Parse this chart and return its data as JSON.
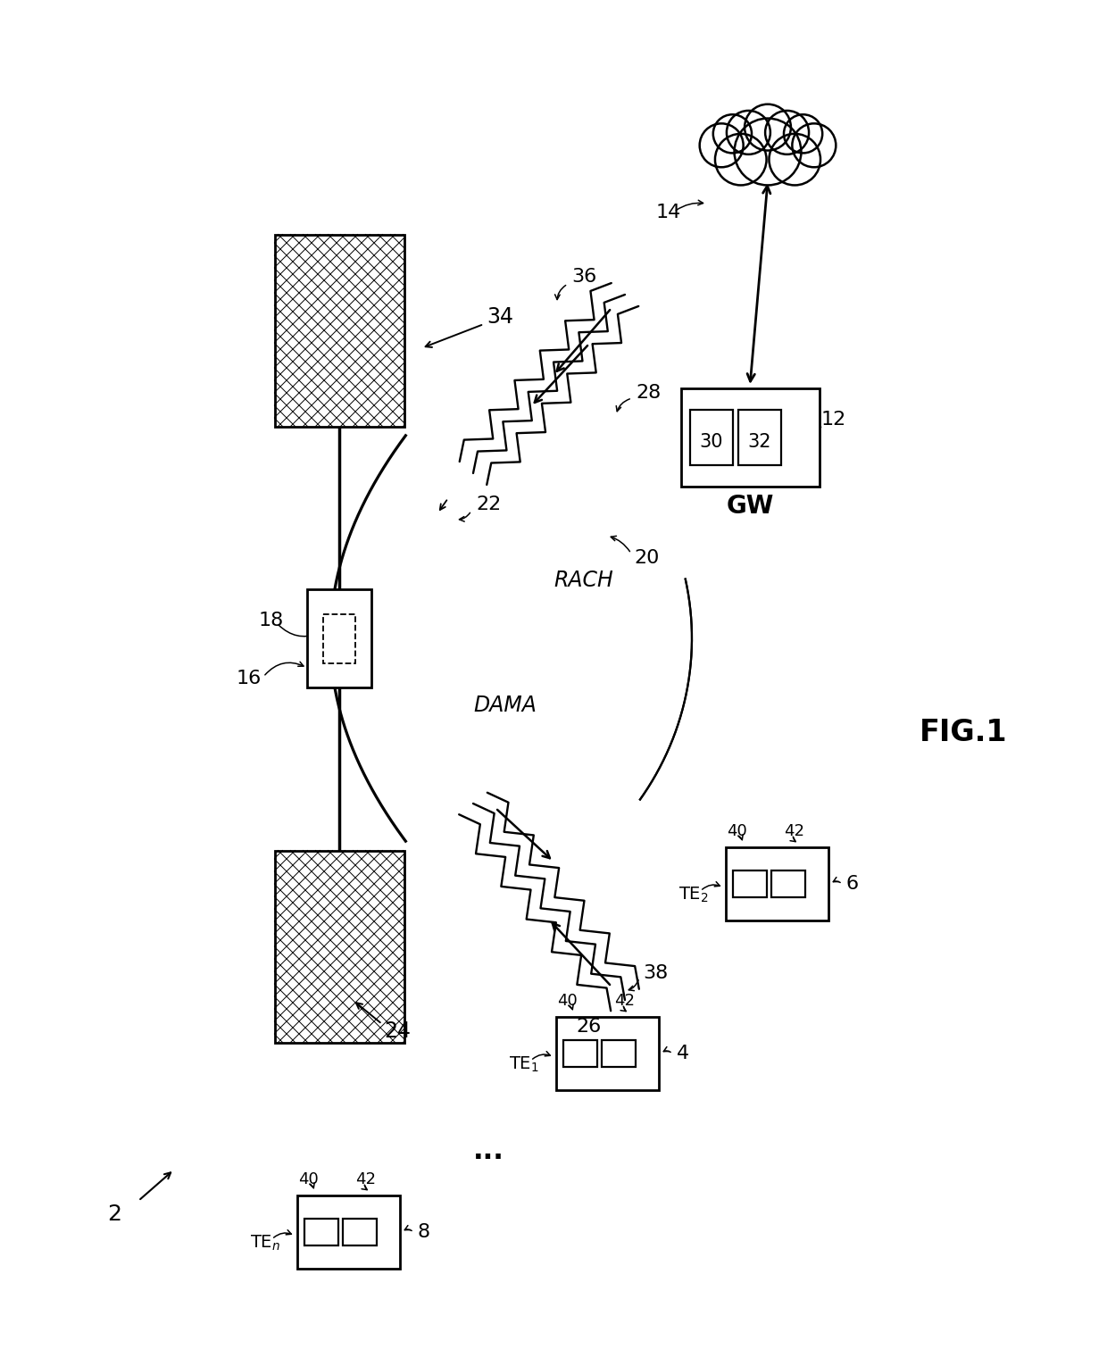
{
  "bg_color": "#ffffff",
  "fig_label": "FIG.1",
  "system_label": "2",
  "gw_label": "GW",
  "cloud_label": "14",
  "gw_box_label": "12",
  "gw_inner1": "30",
  "gw_inner2": "32",
  "satellite_label": "20",
  "rach_label": "RACH",
  "dama_label": "DAMA",
  "sat_top_label": "34",
  "sat_bot_label": "24",
  "hub_label": "16",
  "hub_inner_label": "18",
  "uplink_upper_label": "28",
  "uplink_upper_beam_label": "36",
  "downlink_lower_label": "26",
  "downlink_lower_beam_label": "38",
  "curve_upper_label": "22",
  "te_inner1_label": "40",
  "te_inner2_label": "42",
  "dots_label": "..."
}
